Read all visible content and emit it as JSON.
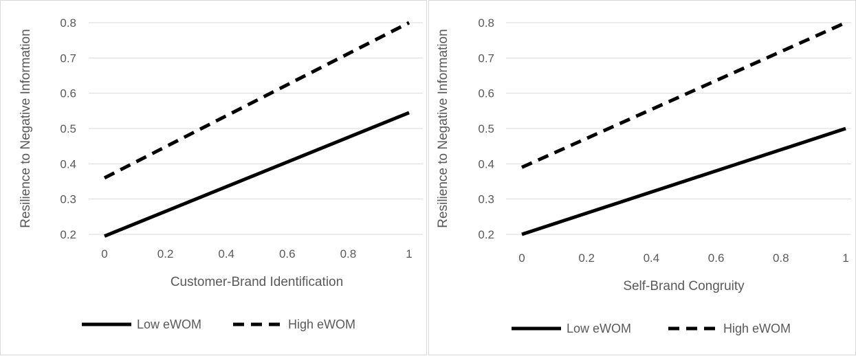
{
  "chart_data": [
    {
      "type": "line",
      "x": [
        0,
        1
      ],
      "series": [
        {
          "name": "Low eWOM",
          "values": [
            0.195,
            0.545
          ],
          "style": "solid",
          "color": "#000000"
        },
        {
          "name": "High eWOM",
          "values": [
            0.36,
            0.8
          ],
          "style": "dashed",
          "color": "#000000"
        }
      ],
      "xlabel": "Customer-Brand Identification",
      "ylabel": "Resilience to Negative Information",
      "xticks": [
        "0",
        "0.2",
        "0.4",
        "0.6",
        "0.8",
        "1"
      ],
      "yticks": [
        "0.2",
        "0.3",
        "0.4",
        "0.5",
        "0.6",
        "0.7",
        "0.8"
      ],
      "xlim": [
        0,
        1
      ],
      "ylim": [
        0.2,
        0.8
      ],
      "grid": "horizontal",
      "legend_position": "bottom"
    },
    {
      "type": "line",
      "x": [
        0,
        1
      ],
      "series": [
        {
          "name": "Low eWOM",
          "values": [
            0.2,
            0.5
          ],
          "style": "solid",
          "color": "#000000"
        },
        {
          "name": "High eWOM",
          "values": [
            0.39,
            0.8
          ],
          "style": "dashed",
          "color": "#000000"
        }
      ],
      "xlabel": "Self-Brand Congruity",
      "ylabel": "Resilience to Negative Information",
      "xticks": [
        "0",
        "0.2",
        "0.4",
        "0.6",
        "0.8",
        "1"
      ],
      "yticks": [
        "0.2",
        "0.3",
        "0.4",
        "0.5",
        "0.6",
        "0.7",
        "0.8"
      ],
      "xlim": [
        0,
        1
      ],
      "ylim": [
        0.2,
        0.8
      ],
      "grid": "horizontal",
      "legend_position": "bottom"
    }
  ]
}
